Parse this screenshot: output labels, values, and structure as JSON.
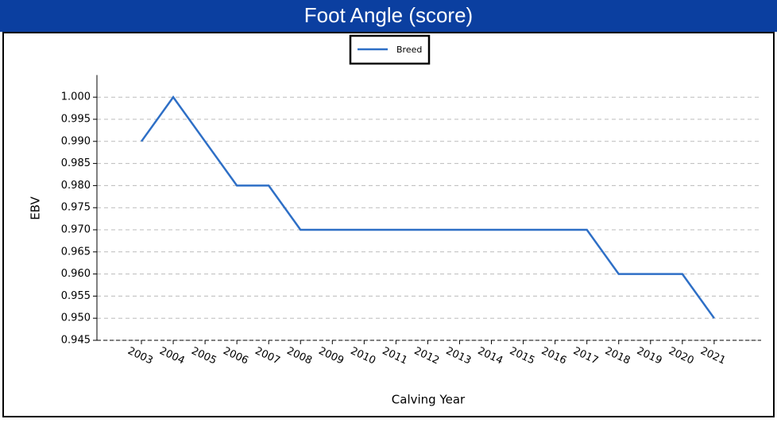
{
  "chart_data": {
    "type": "line",
    "title": "Foot Angle (score)",
    "x_label": "Calving Year",
    "y_label": "EBV",
    "categories": [
      "2003",
      "2004",
      "2005",
      "2006",
      "2007",
      "2008",
      "2009",
      "2010",
      "2011",
      "2012",
      "2013",
      "2014",
      "2015",
      "2016",
      "2017",
      "2018",
      "2019",
      "2020",
      "2021"
    ],
    "series": [
      {
        "name": "Breed",
        "color": "#2e6fc6",
        "values": [
          0.99,
          1.0,
          0.99,
          0.98,
          0.98,
          0.97,
          0.97,
          0.97,
          0.97,
          0.97,
          0.97,
          0.97,
          0.97,
          0.97,
          0.97,
          0.96,
          0.96,
          0.96,
          0.95
        ]
      }
    ],
    "ylim": [
      0.945,
      1.005
    ],
    "yticks": [
      0.945,
      {
        "value": 0.95,
        "label": "0.950"
      },
      0.955,
      {
        "value": 0.96,
        "label": "0.960"
      },
      0.965,
      {
        "value": 0.97,
        "label": "0.970"
      },
      0.975,
      {
        "value": 0.98,
        "label": "0.980"
      },
      0.985,
      {
        "value": 0.99,
        "label": "0.990"
      },
      0.995,
      {
        "value": 1.0,
        "label": "1.000"
      }
    ],
    "grid": true,
    "legend": "top"
  }
}
